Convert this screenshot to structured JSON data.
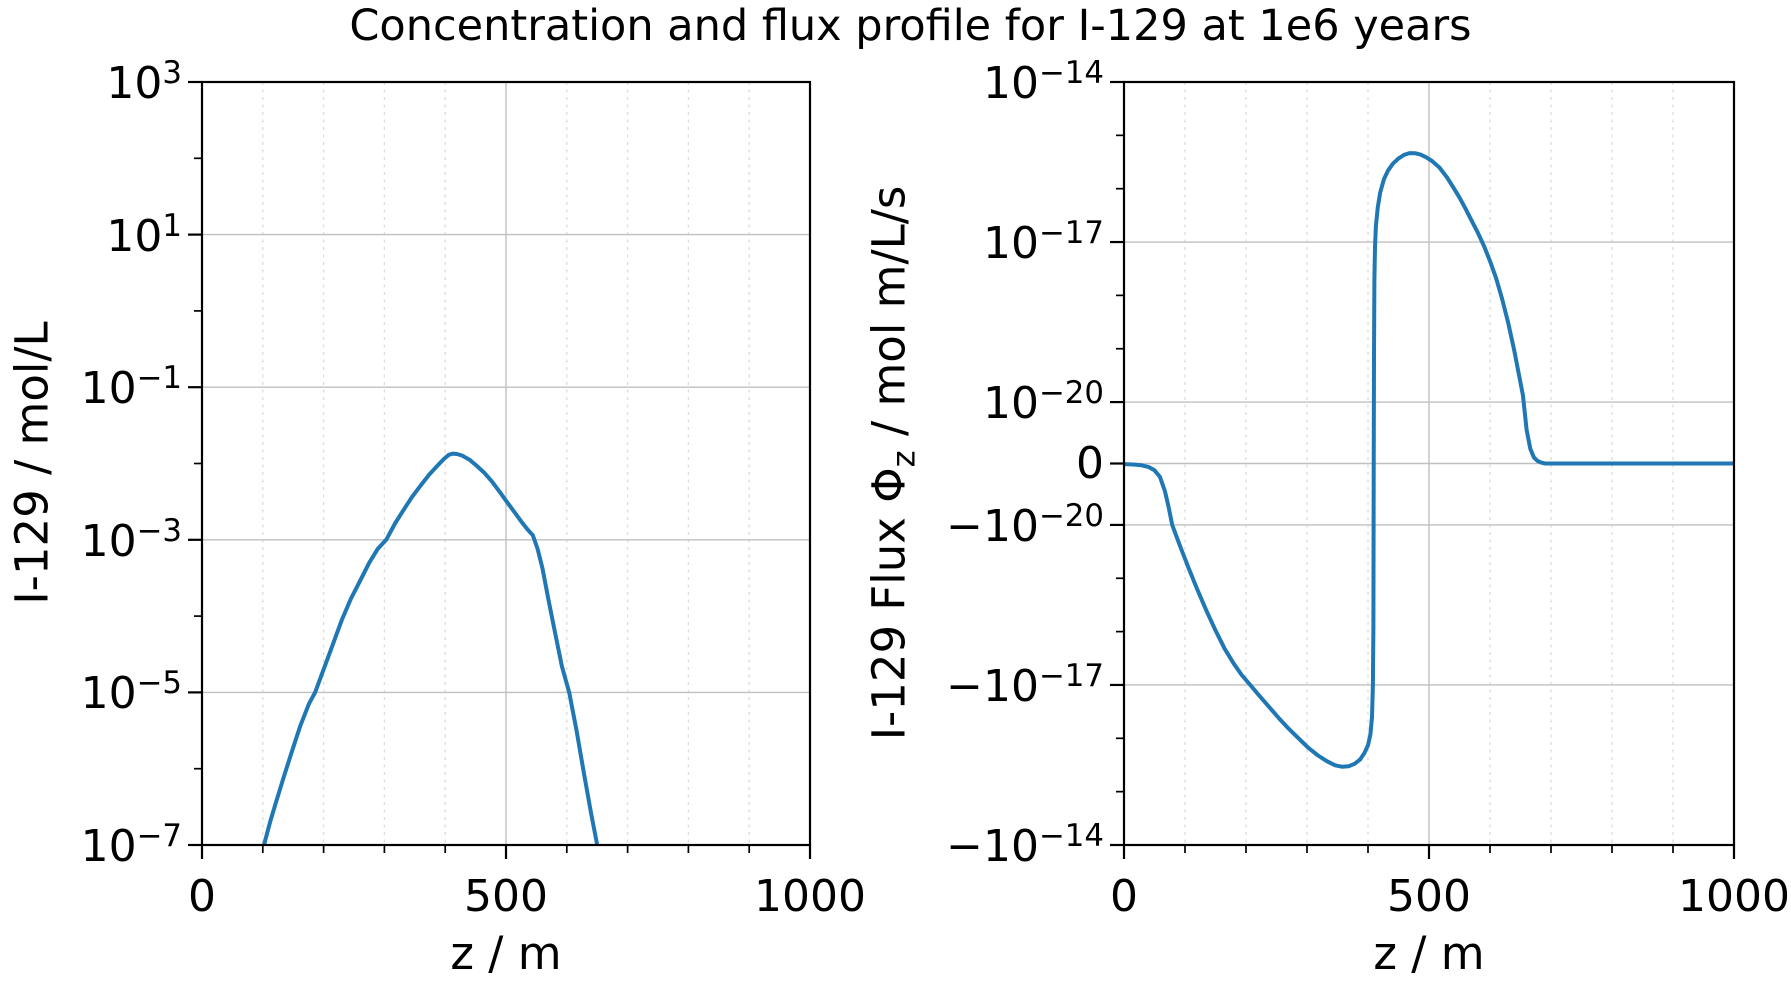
{
  "title": "Concentration and flux profile for I-129 at 1e6 years",
  "colors": {
    "line": "#1f77b4",
    "grid_major": "#c0c0c0",
    "grid_minor": "#dcdcdc",
    "axis": "#000000",
    "text": "#000000",
    "background": "#ffffff"
  },
  "chart_data": [
    {
      "id": "concentration",
      "type": "line",
      "xlabel": "z / m",
      "ylabel": "I-129 / mol/L",
      "xlim": [
        0,
        1000
      ],
      "x_minor_step": 100,
      "xticks": [
        {
          "v": 0,
          "label": "0"
        },
        {
          "v": 500,
          "label": "500"
        },
        {
          "v": 1000,
          "label": "1000"
        }
      ],
      "yscale": "log",
      "y_top_exp": 3,
      "y_bottom_exp": -7,
      "yticks": [
        {
          "exp_val": 3,
          "base": "10",
          "sup": "3"
        },
        {
          "exp_val": 1,
          "base": "10",
          "sup": "1"
        },
        {
          "exp_val": -1,
          "base": "10",
          "sup": "−1"
        },
        {
          "exp_val": -3,
          "base": "10",
          "sup": "−3"
        },
        {
          "exp_val": -5,
          "base": "10",
          "sup": "−5"
        },
        {
          "exp_val": -7,
          "base": "10",
          "sup": "−7"
        }
      ],
      "y_minor_exps": [
        2,
        0,
        -2,
        -4,
        -6
      ],
      "grid": {
        "major": true,
        "minor_x": true
      },
      "series": [
        {
          "name": "I-129 concentration",
          "color": "#1f77b4",
          "points": [
            [
              102,
              1e-07
            ],
            [
              112,
              2e-07
            ],
            [
              122,
              3.7e-07
            ],
            [
              134,
              7.6e-07
            ],
            [
              148,
              1.7e-06
            ],
            [
              162,
              3.7e-06
            ],
            [
              176,
              7.1e-06
            ],
            [
              186,
              1e-05
            ],
            [
              200,
              2e-05
            ],
            [
              215,
              4.2e-05
            ],
            [
              230,
              8.9e-05
            ],
            [
              245,
              0.00017
            ],
            [
              260,
              0.00029
            ],
            [
              275,
              0.0005
            ],
            [
              289,
              0.00076
            ],
            [
              303,
              0.001
            ],
            [
              318,
              0.00166
            ],
            [
              332,
              0.0025
            ],
            [
              346,
              0.0037
            ],
            [
              360,
              0.0052
            ],
            [
              374,
              0.0072
            ],
            [
              388,
              0.0095
            ],
            [
              398,
              0.0115
            ],
            [
              406,
              0.013
            ],
            [
              413,
              0.0135
            ],
            [
              420,
              0.0133
            ],
            [
              428,
              0.0127
            ],
            [
              440,
              0.0112
            ],
            [
              452,
              0.0093
            ],
            [
              464,
              0.0076
            ],
            [
              477,
              0.0058
            ],
            [
              490,
              0.0042
            ],
            [
              502,
              0.0031
            ],
            [
              514,
              0.0023
            ],
            [
              526,
              0.0017
            ],
            [
              536,
              0.00135
            ],
            [
              544,
              0.00115
            ],
            [
              552,
              0.00076
            ],
            [
              560,
              0.00042
            ],
            [
              570,
              0.00016
            ],
            [
              580,
              6.5e-05
            ],
            [
              592,
              2.2e-05
            ],
            [
              604,
              1e-05
            ],
            [
              616,
              3.2e-06
            ],
            [
              628,
              8.9e-07
            ],
            [
              640,
              2.6e-07
            ],
            [
              650,
              1e-07
            ]
          ]
        }
      ]
    },
    {
      "id": "flux",
      "type": "line",
      "xlabel": "z / m",
      "ylabel_parts": {
        "pre": "I-129 Flux Φ",
        "sub": "z",
        "post": " / mol m/L/s"
      },
      "xlim": [
        0,
        1000
      ],
      "x_minor_step": 100,
      "xticks": [
        {
          "v": 0,
          "label": "0"
        },
        {
          "v": 500,
          "label": "500"
        },
        {
          "v": 1000,
          "label": "1000"
        }
      ],
      "yscale": "symlog",
      "y_abs_max_exp": -14,
      "y_linthresh_exp": -20,
      "yticks": [
        {
          "sign": 1,
          "exp_val": -14,
          "base": "10",
          "sup": "−14"
        },
        {
          "sign": 1,
          "exp_val": -17,
          "base": "10",
          "sup": "−17"
        },
        {
          "sign": 1,
          "exp_val": -20,
          "base": "10",
          "sup": "−20"
        },
        {
          "sign": 0,
          "base": "0",
          "sup": ""
        },
        {
          "sign": -1,
          "exp_val": -20,
          "base": "−10",
          "sup": "−20"
        },
        {
          "sign": -1,
          "exp_val": -17,
          "base": "−10",
          "sup": "−17"
        },
        {
          "sign": -1,
          "exp_val": -14,
          "base": "−10",
          "sup": "−14"
        }
      ],
      "y_minor_defs": [
        {
          "sign": 1,
          "exp_val": -15
        },
        {
          "sign": 1,
          "exp_val": -16
        },
        {
          "sign": 1,
          "exp_val": -18
        },
        {
          "sign": 1,
          "exp_val": -19
        },
        {
          "sign": -1,
          "exp_val": -15
        },
        {
          "sign": -1,
          "exp_val": -16
        },
        {
          "sign": -1,
          "exp_val": -18
        },
        {
          "sign": -1,
          "exp_val": -19
        }
      ],
      "grid": {
        "major": true,
        "minor_x": true
      },
      "series": [
        {
          "name": "I-129 flux",
          "color": "#1f77b4",
          "points": [
            [
              0,
              -1e-22
            ],
            [
              15,
              -1.6e-22
            ],
            [
              28,
              -2.8e-22
            ],
            [
              40,
              -5.5e-22
            ],
            [
              50,
              -1.1e-21
            ],
            [
              59,
              -2.2e-21
            ],
            [
              67,
              -4.5e-21
            ],
            [
              73,
              -7e-21
            ],
            [
              79,
              -1e-20
            ],
            [
              92,
              -2.5e-20
            ],
            [
              106,
              -6.5e-20
            ],
            [
              120,
              -1.6e-19
            ],
            [
              135,
              -4e-19
            ],
            [
              150,
              -9.5e-19
            ],
            [
              165,
              -2.1e-18
            ],
            [
              180,
              -4e-18
            ],
            [
              193,
              -6.5e-18
            ],
            [
              207,
              -1e-17
            ],
            [
              222,
              -1.6e-17
            ],
            [
              238,
              -2.6e-17
            ],
            [
              254,
              -4.2e-17
            ],
            [
              270,
              -6.6e-17
            ],
            [
              286,
              -1e-16
            ],
            [
              302,
              -1.5e-16
            ],
            [
              318,
              -2.1e-16
            ],
            [
              333,
              -2.7e-16
            ],
            [
              346,
              -3.2e-16
            ],
            [
              357,
              -3.4e-16
            ],
            [
              368,
              -3.35e-16
            ],
            [
              378,
              -3e-16
            ],
            [
              387,
              -2.5e-16
            ],
            [
              394,
              -1.9e-16
            ],
            [
              400,
              -1.35e-16
            ],
            [
              404,
              -8.5e-17
            ],
            [
              406.5,
              -4e-17
            ],
            [
              408,
              -1e-17
            ],
            [
              408.8,
              -8e-19
            ],
            [
              409.3,
              -1e-21
            ],
            [
              409.8,
              8e-20
            ],
            [
              410.5,
              2e-18
            ],
            [
              411.5,
              8e-18
            ],
            [
              413,
              2e-17
            ],
            [
              416,
              4.5e-17
            ],
            [
              420,
              8.5e-17
            ],
            [
              426,
              1.5e-16
            ],
            [
              433,
              2.2e-16
            ],
            [
              441,
              2.95e-16
            ],
            [
              450,
              3.7e-16
            ],
            [
              459,
              4.3e-16
            ],
            [
              468,
              4.65e-16
            ],
            [
              477,
              4.62e-16
            ],
            [
              486,
              4.35e-16
            ],
            [
              495,
              3.9e-16
            ],
            [
              505,
              3.3e-16
            ],
            [
              517,
              2.5e-16
            ],
            [
              530,
              1.6e-16
            ],
            [
              540,
              1.05e-16
            ],
            [
              550,
              6.8e-17
            ],
            [
              560,
              4.2e-17
            ],
            [
              570,
              2.5e-17
            ],
            [
              580,
              1.5e-17
            ],
            [
              590,
              8.5e-18
            ],
            [
              600,
              4.4e-18
            ],
            [
              610,
              2.1e-18
            ],
            [
              620,
              8.5e-19
            ],
            [
              630,
              3e-19
            ],
            [
              640,
              9e-20
            ],
            [
              648,
              3e-20
            ],
            [
              654,
              1.35e-20
            ],
            [
              660,
              5.5e-21
            ],
            [
              666,
              2.4e-21
            ],
            [
              672,
              1e-21
            ],
            [
              678,
              4e-22
            ],
            [
              684,
              1.5e-22
            ],
            [
              690,
              0
            ],
            [
              850,
              0
            ],
            [
              1000,
              0
            ]
          ]
        }
      ]
    }
  ]
}
